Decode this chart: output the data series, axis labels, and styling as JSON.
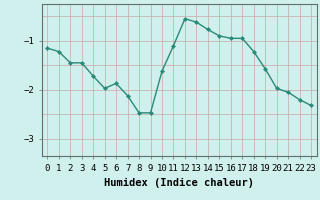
{
  "x": [
    0,
    1,
    2,
    3,
    4,
    5,
    6,
    7,
    8,
    9,
    10,
    11,
    12,
    13,
    14,
    15,
    16,
    17,
    18,
    19,
    20,
    21,
    22,
    23
  ],
  "y": [
    -1.15,
    -1.22,
    -1.45,
    -1.45,
    -1.72,
    -1.97,
    -1.87,
    -2.12,
    -2.47,
    -2.47,
    -1.62,
    -1.1,
    -0.55,
    -0.62,
    -0.77,
    -0.9,
    -0.95,
    -0.95,
    -1.22,
    -1.57,
    -1.97,
    -2.05,
    -2.2,
    -2.32
  ],
  "xlabel": "Humidex (Indice chaleur)",
  "line_color": "#2a8a78",
  "marker_color": "#2a8a78",
  "bg_color": "#cff0ec",
  "grid_color_v": "#c8a8a8",
  "grid_color_h": "#c8a8a8",
  "yticks": [
    -3,
    -2,
    -1
  ],
  "ylim": [
    -3.35,
    -0.25
  ],
  "xlim": [
    -0.5,
    23.5
  ],
  "tick_fontsize": 6.5,
  "xlabel_fontsize": 7.5
}
